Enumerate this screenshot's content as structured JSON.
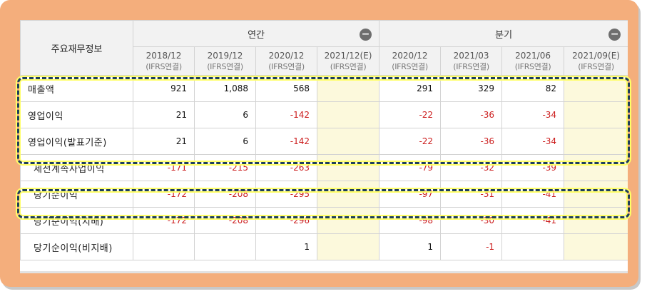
{
  "table": {
    "corner_label": "주요재무정보",
    "groups": [
      {
        "label": "연간",
        "toggle": "−"
      },
      {
        "label": "분기",
        "toggle": "−"
      }
    ],
    "columns": [
      {
        "date": "2018/12",
        "basis": "(IFRS연결)",
        "estimate": false
      },
      {
        "date": "2019/12",
        "basis": "(IFRS연결)",
        "estimate": false
      },
      {
        "date": "2020/12",
        "basis": "(IFRS연결)",
        "estimate": false
      },
      {
        "date": "2021/12(E)",
        "basis": "(IFRS연결)",
        "estimate": true
      },
      {
        "date": "2020/12",
        "basis": "(IFRS연결)",
        "estimate": false
      },
      {
        "date": "2021/03",
        "basis": "(IFRS연결)",
        "estimate": false
      },
      {
        "date": "2021/06",
        "basis": "(IFRS연결)",
        "estimate": false
      },
      {
        "date": "2021/09(E)",
        "basis": "(IFRS연결)",
        "estimate": true
      }
    ],
    "rows": [
      {
        "label": "매출액",
        "values": [
          "921",
          "1,088",
          "568",
          "",
          "291",
          "329",
          "82",
          ""
        ]
      },
      {
        "label": "영업이익",
        "values": [
          "21",
          "6",
          "-142",
          "",
          "-22",
          "-36",
          "-34",
          ""
        ]
      },
      {
        "label": "영업이익(발표기준)",
        "values": [
          "21",
          "6",
          "-142",
          "",
          "-22",
          "-36",
          "-34",
          ""
        ]
      },
      {
        "label": "세전계속사업이익",
        "values": [
          "-171",
          "-215",
          "-263",
          "",
          "-79",
          "-32",
          "-39",
          ""
        ]
      },
      {
        "label": "당기순이익",
        "values": [
          "-172",
          "-208",
          "-295",
          "",
          "-97",
          "-31",
          "-41",
          ""
        ]
      },
      {
        "label": "당기순이익(지배)",
        "values": [
          "-172",
          "-208",
          "-296",
          "",
          "-98",
          "-30",
          "-41",
          ""
        ]
      },
      {
        "label": "당기순이익(비지배)",
        "values": [
          "",
          "",
          "1",
          "",
          "1",
          "-1",
          "",
          ""
        ]
      }
    ]
  },
  "colors": {
    "frame": "#f4ae7c",
    "header_bg": "#f2f2f2",
    "estimate_bg": "#fcf9dc",
    "negative_text": "#cc1e1e",
    "highlight_dash": "#1e3f5a",
    "highlight_glow": "#ffff66"
  }
}
